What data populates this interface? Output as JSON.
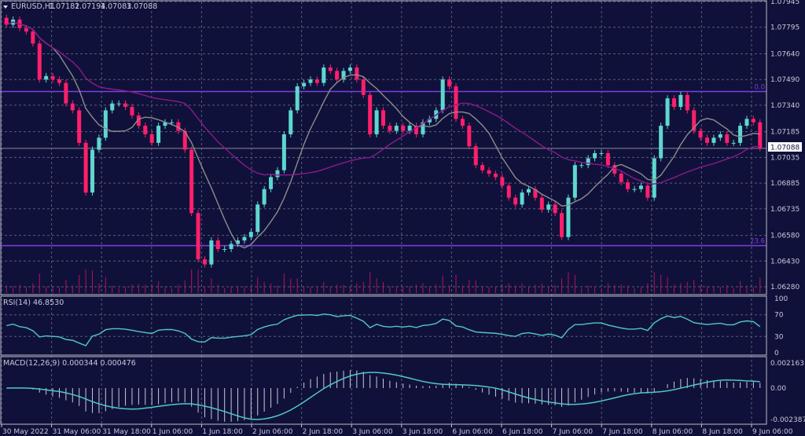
{
  "header": {
    "symbol": "EURUSD,H1",
    "open": "1.07182",
    "high": "1.07194",
    "low": "1.07083",
    "close": "1.07088",
    "menu_icon": "triangle-down-icon"
  },
  "colors": {
    "background": "#10113a",
    "grid": "#5a5b7a",
    "bull": "#5fd7cf",
    "bear": "#ff1f6b",
    "ma_fast": "#8c8c8c",
    "ma_slow": "#8a1a8a",
    "fib": "#7b3fe0",
    "price_line": "#7a7a8a",
    "indicator": "#4fc8c8",
    "volume": "#b0155a"
  },
  "chart_data": [
    {
      "type": "candlestick",
      "title": "EURUSD,H1",
      "ylim": [
        1.0621,
        1.0796
      ],
      "y_ticks": [
        "1.07945",
        "1.07795",
        "1.07640",
        "1.07490",
        "1.07340",
        "1.07185",
        "1.07035",
        "1.06885",
        "1.06735",
        "1.06580",
        "1.06430",
        "1.06280"
      ],
      "x_ticks": [
        "30 May 2022",
        "31 May 06:00",
        "31 May 18:00",
        "1 Jun 06:00",
        "1 Jun 18:00",
        "2 Jun 06:00",
        "2 Jun 18:00",
        "3 Jun 06:00",
        "3 Jun 18:00",
        "6 Jun 06:00",
        "6 Jun 18:00",
        "7 Jun 06:00",
        "7 Jun 18:00",
        "8 Jun 06:00",
        "8 Jun 18:00",
        "9 Jun 06:00"
      ],
      "current_price": "1.07088",
      "fib_levels": [
        {
          "label": "0.0",
          "price": 1.0742
        },
        {
          "label": "23.6",
          "price": 1.0652
        }
      ],
      "grid": true,
      "closes": [
        1.0781,
        1.0784,
        1.0779,
        1.0777,
        1.077,
        1.0749,
        1.0751,
        1.0749,
        1.0747,
        1.0735,
        1.0731,
        1.0712,
        1.0683,
        1.0708,
        1.0715,
        1.0731,
        1.0735,
        1.0735,
        1.0733,
        1.0728,
        1.0722,
        1.0717,
        1.0712,
        1.0722,
        1.0724,
        1.0724,
        1.0719,
        1.0708,
        1.0671,
        1.0644,
        1.0641,
        1.0655,
        1.065,
        1.065,
        1.0653,
        1.0655,
        1.0657,
        1.066,
        1.0676,
        1.0685,
        1.0692,
        1.0696,
        1.0717,
        1.0731,
        1.0745,
        1.0747,
        1.0749,
        1.0747,
        1.0756,
        1.0754,
        1.0749,
        1.0754,
        1.0756,
        1.0749,
        1.074,
        1.0717,
        1.0731,
        1.0722,
        1.0719,
        1.0722,
        1.0719,
        1.0722,
        1.0717,
        1.0724,
        1.0726,
        1.0731,
        1.0749,
        1.0745,
        1.0726,
        1.0722,
        1.071,
        1.0699,
        1.0696,
        1.0694,
        1.0692,
        1.0687,
        1.068,
        1.0676,
        1.0683,
        1.0685,
        1.068,
        1.0673,
        1.0676,
        1.0671,
        1.0657,
        1.068,
        1.0699,
        1.0699,
        1.0703,
        1.0706,
        1.0706,
        1.0699,
        1.0694,
        1.0689,
        1.0685,
        1.0685,
        1.0687,
        1.068,
        1.0703,
        1.0722,
        1.0738,
        1.0733,
        1.074,
        1.0731,
        1.0719,
        1.0715,
        1.0712,
        1.0715,
        1.0717,
        1.0712,
        1.0712,
        1.0722,
        1.0726,
        1.0724,
        1.07088
      ]
    },
    {
      "type": "line",
      "title": "RSI(14) 46.8530",
      "label": "RSI(14)",
      "value": "46.8530",
      "ylim": [
        0,
        100
      ],
      "y_ticks": [
        "100",
        "70",
        "30",
        "0"
      ],
      "levels": [
        70,
        30
      ]
    },
    {
      "type": "line",
      "title": "MACD(12,26,9) 0.000344 0.000476",
      "label": "MACD(12,26,9)",
      "main": "0.000344",
      "signal": "0.000476",
      "ylim": [
        -0.002387,
        0.002163
      ],
      "y_ticks": [
        "0.002163",
        "0.00",
        "-0.002387"
      ]
    }
  ]
}
